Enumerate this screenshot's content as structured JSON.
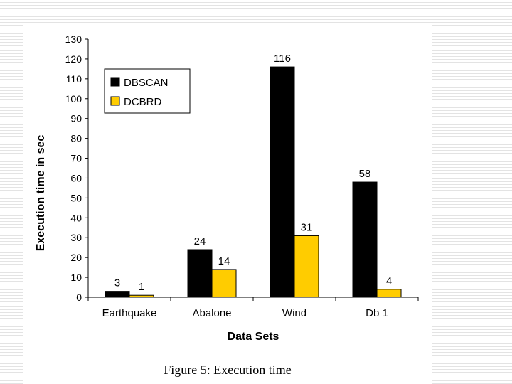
{
  "chart_data": {
    "type": "bar",
    "categories": [
      "Earthquake",
      "Abalone",
      "Wind",
      "Db 1"
    ],
    "series": [
      {
        "name": "DBSCAN",
        "values": [
          3,
          24,
          116,
          58
        ],
        "color": "#000000"
      },
      {
        "name": "DCBRD",
        "values": [
          1,
          14,
          31,
          4
        ],
        "color": "#ffcc00"
      }
    ],
    "xlabel": "Data Sets",
    "ylabel": "Execution time in sec",
    "ylim": [
      0,
      130
    ],
    "yticks": [
      0,
      10,
      20,
      30,
      40,
      50,
      60,
      70,
      80,
      90,
      100,
      110,
      120,
      130
    ],
    "legend_position": "top-left",
    "grid": false
  },
  "caption": "Figure 5: Execution time"
}
